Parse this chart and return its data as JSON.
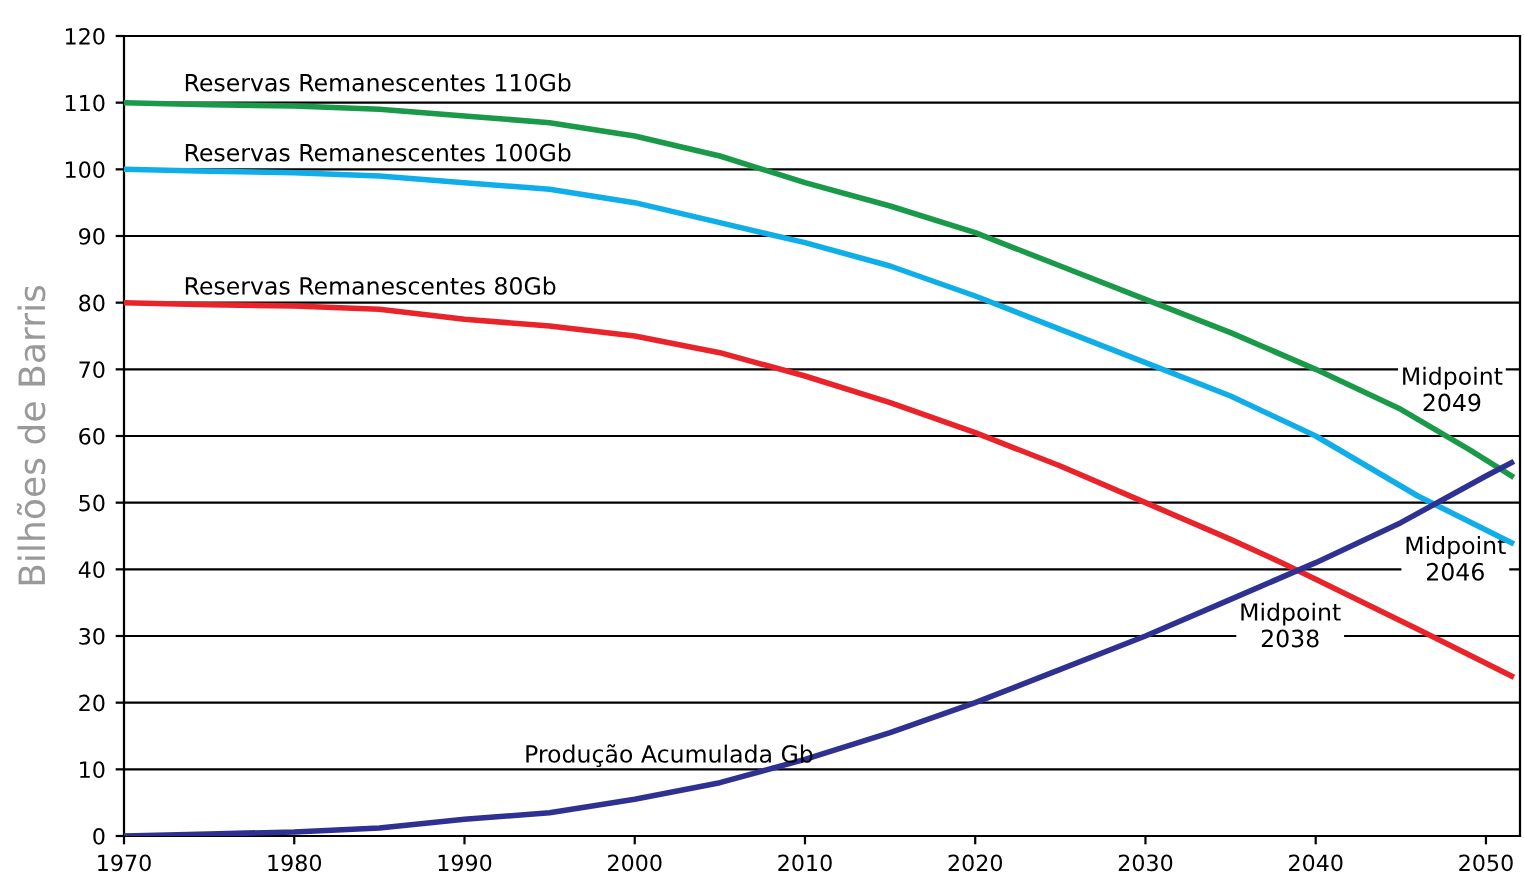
{
  "chart_data": {
    "type": "line",
    "ylabel": "Bilhões de Barris",
    "xlim": [
      1970,
      2052
    ],
    "ylim": [
      0,
      120
    ],
    "xticks": [
      1970,
      1980,
      1990,
      2000,
      2010,
      2020,
      2030,
      2040,
      2050
    ],
    "yticks": [
      0,
      10,
      20,
      30,
      40,
      50,
      60,
      70,
      80,
      90,
      100,
      110,
      120
    ],
    "grid": "y",
    "legend": false,
    "marker": "none",
    "line_style": "solid",
    "series": [
      {
        "name": "Reservas Remanescentes 110Gb",
        "color": "#1a9a48",
        "x": [
          1970,
          1975,
          1980,
          1985,
          1990,
          1995,
          2000,
          2005,
          2010,
          2015,
          2020,
          2025,
          2030,
          2035,
          2040,
          2045,
          2049,
          2051.5
        ],
        "values": [
          110,
          109.7,
          109.5,
          109,
          108,
          107,
          105,
          102,
          98,
          94.5,
          90.5,
          85.5,
          80.5,
          75.5,
          70,
          64,
          58,
          54
        ]
      },
      {
        "name": "Reservas Remanescentes 100Gb",
        "color": "#10aee8",
        "x": [
          1970,
          1975,
          1980,
          1985,
          1990,
          1995,
          2000,
          2005,
          2010,
          2015,
          2020,
          2025,
          2030,
          2035,
          2040,
          2046,
          2051.5
        ],
        "values": [
          100,
          99.7,
          99.5,
          99,
          98,
          97,
          95,
          92,
          89,
          85.5,
          81,
          76,
          71,
          66,
          60,
          51,
          44
        ]
      },
      {
        "name": "Reservas Remanescentes 80Gb",
        "color": "#e8242a",
        "x": [
          1970,
          1975,
          1980,
          1985,
          1990,
          1995,
          2000,
          2005,
          2010,
          2015,
          2020,
          2025,
          2030,
          2035,
          2038,
          2040,
          2046,
          2051.5
        ],
        "values": [
          80,
          79.7,
          79.5,
          79,
          77.5,
          76.5,
          75,
          72.5,
          69,
          65,
          60.5,
          55.5,
          50,
          44.5,
          41,
          38.5,
          31,
          24
        ]
      },
      {
        "name": "Produção Acumulada Gb",
        "color": "#2e3192",
        "x": [
          1970,
          1975,
          1980,
          1985,
          1990,
          1995,
          2000,
          2005,
          2010,
          2015,
          2020,
          2025,
          2030,
          2035,
          2040,
          2045,
          2050,
          2051.5
        ],
        "values": [
          0,
          0.3,
          0.6,
          1.2,
          2.5,
          3.5,
          5.5,
          8,
          11.5,
          15.5,
          20,
          25,
          30,
          35.5,
          41,
          47,
          54,
          56
        ]
      }
    ],
    "annotations": [
      {
        "text": "Midpoint\n2049",
        "x": 2049,
        "y": 58
      },
      {
        "text": "Midpoint\n2046",
        "x": 2046,
        "y": 51
      },
      {
        "text": "Midpoint\n2038",
        "x": 2038,
        "y": 41
      }
    ]
  }
}
